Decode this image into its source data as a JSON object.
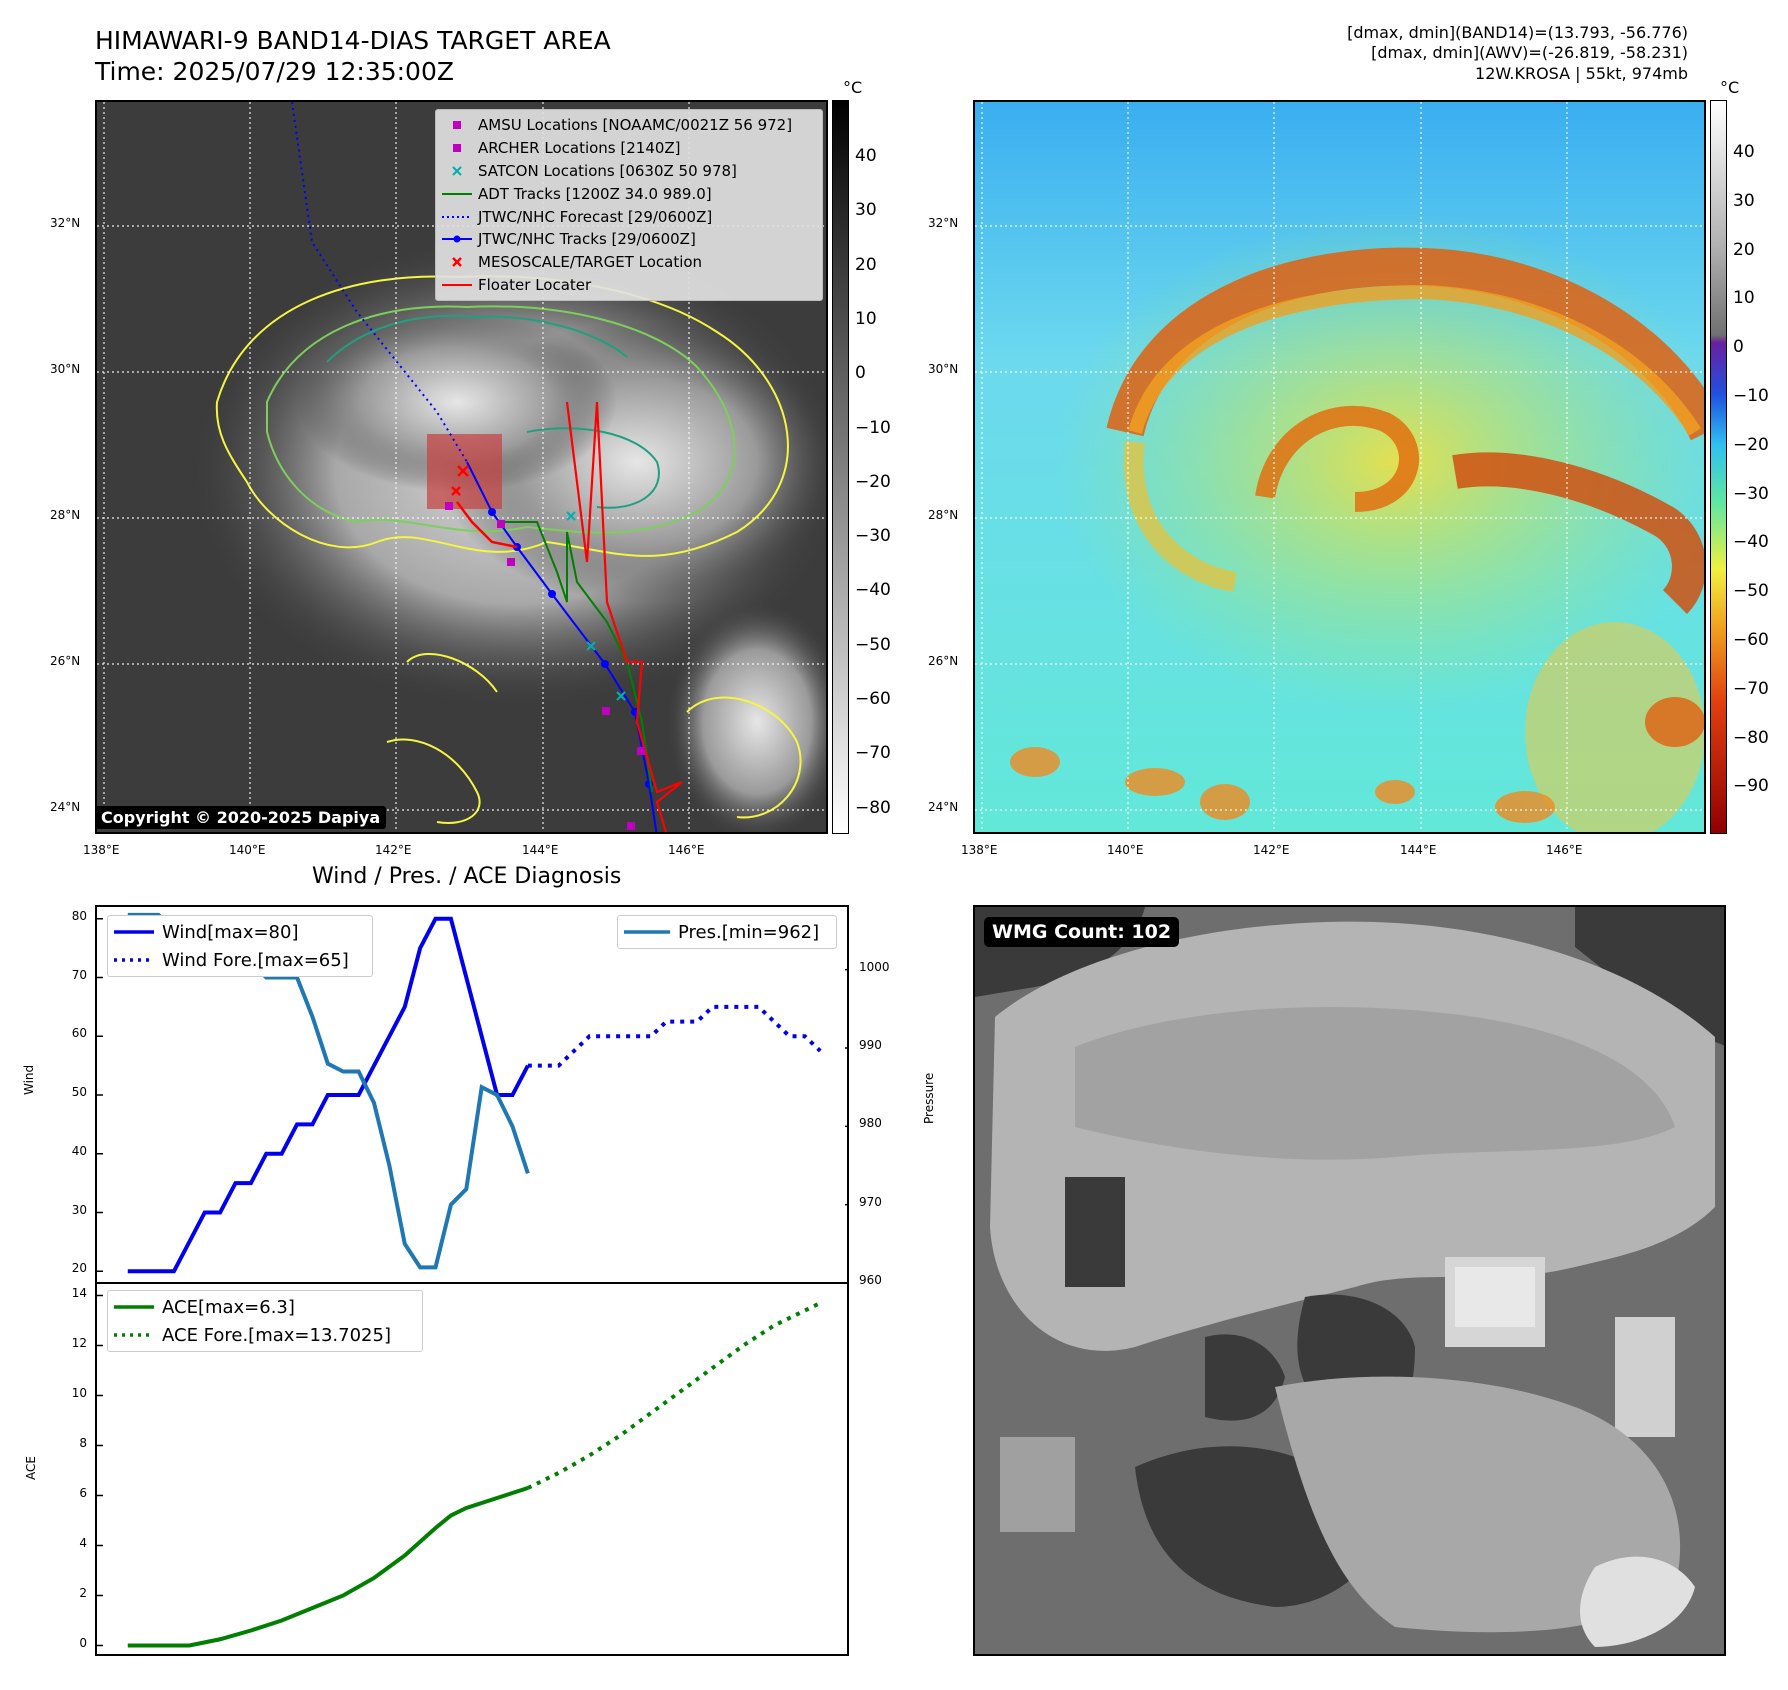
{
  "header": {
    "title_line1": "HIMAWARI-9 BAND14-DIAS TARGET AREA",
    "title_line2": "Time: 2025/07/29 12:35:00Z",
    "info_line1": "[dmax, dmin](BAND14)=(13.793, -56.776)",
    "info_line2": "[dmax, dmin](AWV)=(-26.819, -58.231)",
    "info_line3": "12W.KROSA | 55kt, 974mb"
  },
  "map_axes": {
    "lon_labels": [
      "138°E",
      "140°E",
      "142°E",
      "144°E",
      "146°E"
    ],
    "lat_labels": [
      "32°N",
      "30°N",
      "28°N",
      "26°N",
      "24°N"
    ]
  },
  "colorbar_left": {
    "unit": "°C",
    "ticks": [
      "40",
      "30",
      "20",
      "10",
      "0",
      "−10",
      "−20",
      "−30",
      "−40",
      "−50",
      "−60",
      "−70",
      "−80"
    ]
  },
  "colorbar_right": {
    "unit": "°C",
    "ticks": [
      "40",
      "30",
      "20",
      "10",
      "0",
      "−10",
      "−20",
      "−30",
      "−40",
      "−50",
      "−60",
      "−70",
      "−80",
      "−90"
    ]
  },
  "map_legend": {
    "items": [
      {
        "label": "AMSU Locations [NOAAMC/0021Z 56 972]",
        "symbol": "square",
        "color": "#c000c0"
      },
      {
        "label": "ARCHER Locations [2140Z]",
        "symbol": "square",
        "color": "#c000c0"
      },
      {
        "label": "SATCON Locations [0630Z 50 978]",
        "symbol": "x",
        "color": "#00b0b0"
      },
      {
        "label": "ADT Tracks [1200Z 34.0 989.0]",
        "symbol": "line",
        "color": "#008000"
      },
      {
        "label": "JTWC/NHC Forecast [29/0600Z]",
        "symbol": "dotted",
        "color": "#0000ff"
      },
      {
        "label": "JTWC/NHC Tracks [29/0600Z]",
        "symbol": "linedot",
        "color": "#0000ff"
      },
      {
        "label": "MESOSCALE/TARGET Location",
        "symbol": "x",
        "color": "#ff0000"
      },
      {
        "label": "Floater Locater",
        "symbol": "line",
        "color": "#ff0000"
      }
    ]
  },
  "copyright": "Copyright © 2020-2025 Dapiya",
  "wmg_badge": "WMG Count: 102",
  "colors": {
    "wind": "#0000ee",
    "pressure": "#1f77b4",
    "ace": "#007f00",
    "contour_yellow": "#f5f542",
    "contour_green": "#7ccf5a",
    "contour_teal": "#20a080",
    "track_red": "#ff0000"
  },
  "chart_data": [
    {
      "type": "line",
      "title": "Wind / Pres. / ACE Diagnosis",
      "ylabel": "Wind",
      "y2label": "Pressure",
      "ylim": [
        18,
        82
      ],
      "y2lim": [
        960,
        1008
      ],
      "yticks": [
        "80",
        "70",
        "60",
        "50",
        "40",
        "30",
        "20"
      ],
      "y2ticks": [
        "1000",
        "990",
        "980",
        "970",
        "960"
      ],
      "xlim": [
        -2,
        47
      ],
      "series": [
        {
          "name": "Wind[max=80]",
          "style": "solid",
          "axis": "left",
          "x": [
            0,
            1,
            2,
            3,
            4,
            5,
            6,
            7,
            8,
            9,
            10,
            11,
            12,
            13,
            14,
            15,
            16,
            17,
            18,
            19,
            20,
            21,
            22,
            23,
            24,
            25,
            26
          ],
          "y": [
            20,
            20,
            20,
            20,
            25,
            30,
            30,
            35,
            35,
            40,
            40,
            45,
            45,
            50,
            50,
            50,
            55,
            60,
            65,
            75,
            80,
            80,
            70,
            60,
            50,
            50,
            55
          ]
        },
        {
          "name": "Wind Fore.[max=65]",
          "style": "dotted",
          "axis": "left",
          "x": [
            26,
            27,
            28,
            29,
            30,
            31,
            32,
            33,
            34,
            35,
            36,
            37,
            38,
            39,
            40,
            41,
            42,
            43,
            44,
            45
          ],
          "y": [
            55,
            55,
            55,
            57.5,
            60,
            60,
            60,
            60,
            60,
            62.5,
            62.5,
            62.5,
            65,
            65,
            65,
            65,
            62.5,
            60,
            60,
            57.5
          ]
        },
        {
          "name": "Pres.[min=962]",
          "style": "solid",
          "axis": "right",
          "x": [
            0,
            1,
            2,
            3,
            4,
            5,
            6,
            7,
            8,
            9,
            10,
            11,
            12,
            13,
            14,
            15,
            16,
            17,
            18,
            19,
            20,
            21,
            22,
            23,
            24,
            25,
            26
          ],
          "y": [
            1007,
            1007,
            1007,
            1005,
            1005,
            1004,
            1004,
            1001,
            1001,
            999,
            999,
            999,
            994,
            988,
            987,
            987,
            983,
            975,
            965,
            962,
            962,
            970,
            972,
            985,
            984,
            980,
            974
          ]
        }
      ]
    },
    {
      "type": "line",
      "ylabel": "ACE",
      "ylim": [
        -0.5,
        14.5
      ],
      "yticks": [
        "14",
        "12",
        "10",
        "8",
        "6",
        "4",
        "2",
        "0"
      ],
      "xlim": [
        -2,
        47
      ],
      "series": [
        {
          "name": "ACE[max=6.3]",
          "style": "solid",
          "x": [
            0,
            2,
            4,
            6,
            8,
            10,
            12,
            14,
            16,
            18,
            20,
            21,
            22,
            23,
            24,
            25,
            26
          ],
          "y": [
            0,
            0,
            0,
            0.25,
            0.6,
            1.0,
            1.5,
            2.0,
            2.7,
            3.6,
            4.7,
            5.2,
            5.5,
            5.7,
            5.9,
            6.1,
            6.3
          ]
        },
        {
          "name": "ACE Fore.[max=13.7025]",
          "style": "dotted",
          "x": [
            26,
            28,
            30,
            32,
            34,
            36,
            38,
            40,
            42,
            44,
            45
          ],
          "y": [
            6.3,
            6.9,
            7.6,
            8.4,
            9.3,
            10.2,
            11.1,
            12.0,
            12.8,
            13.4,
            13.7
          ]
        }
      ]
    }
  ]
}
